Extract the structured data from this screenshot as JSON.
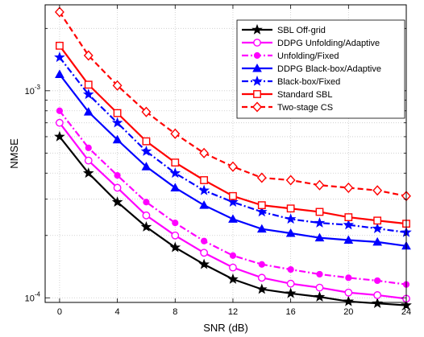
{
  "chart_data": {
    "type": "line",
    "xlabel": "SNR (dB)",
    "ylabel": "NMSE",
    "x": [
      0,
      2,
      4,
      6,
      8,
      10,
      12,
      14,
      16,
      18,
      20,
      22,
      24
    ],
    "xlim": [
      -1,
      24
    ],
    "xticks": [
      "0",
      "4",
      "8",
      "12",
      "16",
      "20",
      "24"
    ],
    "xtick_values": [
      0,
      4,
      8,
      12,
      16,
      20,
      24
    ],
    "ylim": [
      9.5e-05,
      0.0026
    ],
    "yscale": "log",
    "yticks": [
      {
        "value": 0.0001,
        "base": "10",
        "exp": "-4"
      },
      {
        "value": 0.001,
        "base": "10",
        "exp": "-3"
      }
    ],
    "grid": true,
    "legend_position": "top-right",
    "series": [
      {
        "name": "SBL Off-grid",
        "color": "#000000",
        "dash": "solid",
        "marker": "star",
        "values": [
          0.0006,
          0.0004,
          0.00029,
          0.00022,
          0.000175,
          0.000145,
          0.000123,
          0.00011,
          0.000105,
          0.000101,
          9.6e-05,
          9.4e-05,
          9.2e-05
        ]
      },
      {
        "name": "DDPG Unfolding/Adaptive",
        "color": "#ff00ff",
        "dash": "solid",
        "marker": "circle-open",
        "values": [
          0.0007,
          0.00046,
          0.00034,
          0.00025,
          0.0002,
          0.000165,
          0.00014,
          0.000125,
          0.000117,
          0.000112,
          0.000106,
          0.000103,
          9.9e-05
        ]
      },
      {
        "name": "Unfolding/Fixed",
        "color": "#ff00ff",
        "dash": "dashdot",
        "marker": "circle-filled",
        "values": [
          0.0008,
          0.00053,
          0.00039,
          0.00029,
          0.00023,
          0.000188,
          0.00016,
          0.000145,
          0.000137,
          0.00013,
          0.000125,
          0.000121,
          0.000116
        ]
      },
      {
        "name": "DDPG Black-box/Adaptive",
        "color": "#0000ff",
        "dash": "solid",
        "marker": "triangle",
        "values": [
          0.0012,
          0.00079,
          0.00058,
          0.00043,
          0.00034,
          0.00028,
          0.00024,
          0.000215,
          0.000205,
          0.000195,
          0.00019,
          0.000186,
          0.000178
        ]
      },
      {
        "name": "Black-box/Fixed",
        "color": "#0000ff",
        "dash": "dashdot",
        "marker": "star",
        "values": [
          0.00145,
          0.00096,
          0.0007,
          0.00051,
          0.0004,
          0.00033,
          0.00029,
          0.00026,
          0.00024,
          0.00023,
          0.000225,
          0.000216,
          0.000207
        ]
      },
      {
        "name": "Standard SBL",
        "color": "#ff0000",
        "dash": "solid",
        "marker": "square",
        "values": [
          0.00165,
          0.00107,
          0.00078,
          0.00057,
          0.00045,
          0.00037,
          0.00031,
          0.00028,
          0.00027,
          0.00026,
          0.000245,
          0.000236,
          0.000228
        ]
      },
      {
        "name": "Two-stage CS",
        "color": "#ff0000",
        "dash": "dashed",
        "marker": "diamond",
        "values": [
          0.0024,
          0.00148,
          0.00106,
          0.00079,
          0.00062,
          0.0005,
          0.00043,
          0.00038,
          0.00037,
          0.00035,
          0.00034,
          0.00033,
          0.00031
        ]
      }
    ]
  }
}
